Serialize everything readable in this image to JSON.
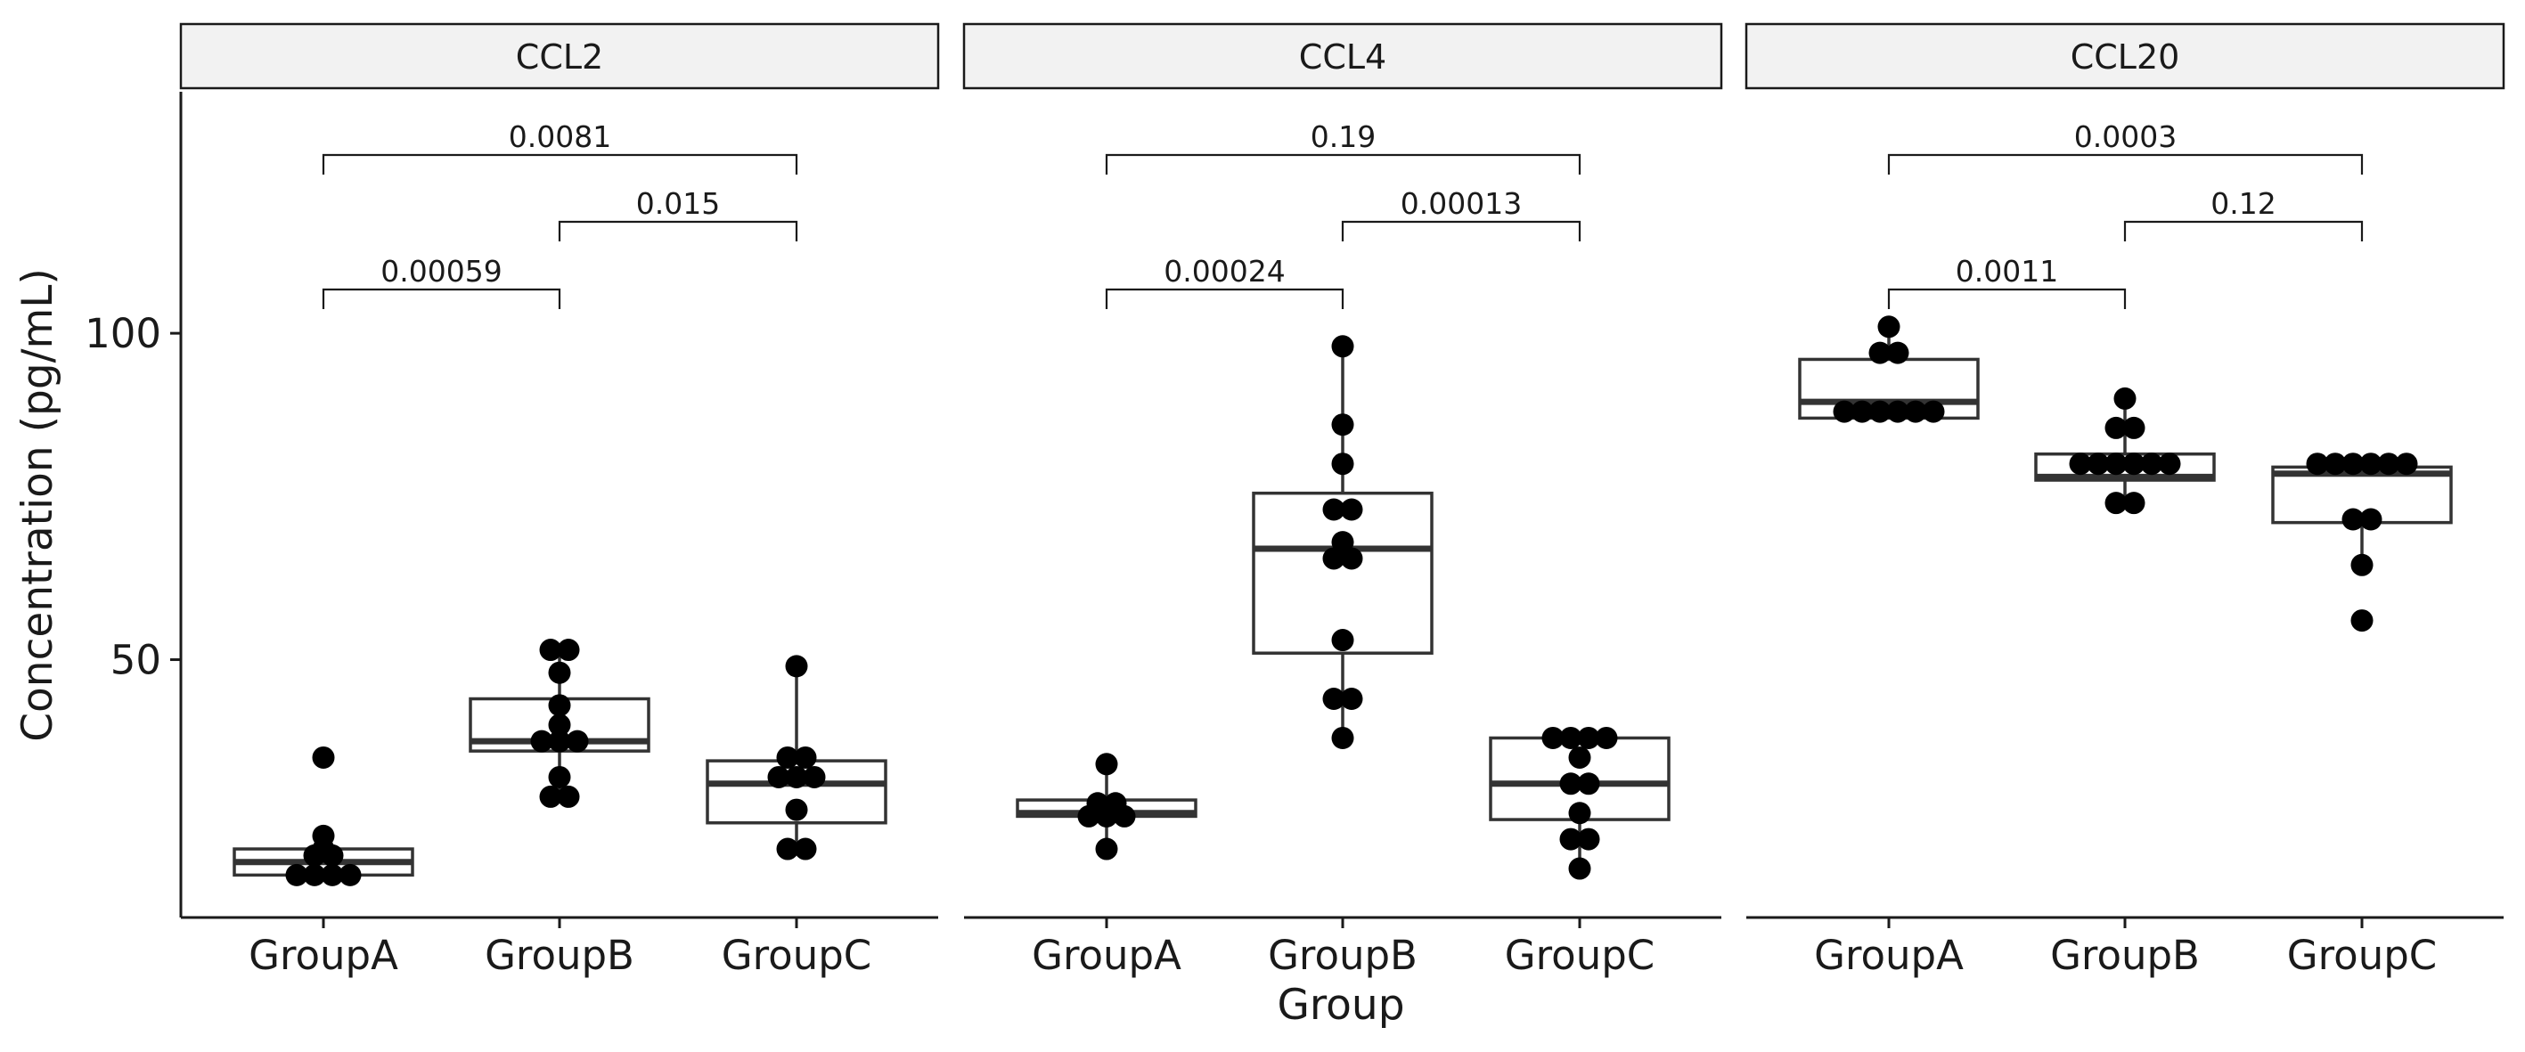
{
  "chart_data": {
    "type": "box",
    "xlabel": "Group",
    "ylabel": "Concentration (pg/mL)",
    "ylim": [
      10.5,
      137
    ],
    "yticks": [
      50,
      100
    ],
    "categories": [
      "GroupA",
      "GroupB",
      "GroupC"
    ],
    "grid": false,
    "facets": [
      {
        "title": "CCL2",
        "boxes": [
          {
            "group": "GroupA",
            "q1": 17,
            "median": 19,
            "q3": 21,
            "whisker_low": 17,
            "whisker_high": 23,
            "outliers": [
              35
            ]
          },
          {
            "group": "GroupB",
            "q1": 36,
            "median": 37.5,
            "q3": 44,
            "whisker_low": 29,
            "whisker_high": 51.5,
            "outliers": []
          },
          {
            "group": "GroupC",
            "q1": 25,
            "median": 31,
            "q3": 34.5,
            "whisker_low": 21,
            "whisker_high": 49,
            "outliers": []
          }
        ],
        "points": [
          {
            "group": "GroupA",
            "values": [
              35,
              23,
              21,
              20,
              20,
              17,
              17,
              17,
              17
            ]
          },
          {
            "group": "GroupB",
            "values": [
              51.5,
              51.5,
              48,
              43,
              40,
              37.5,
              37.5,
              37.5,
              32,
              29,
              29
            ]
          },
          {
            "group": "GroupC",
            "values": [
              49,
              35,
              35,
              32,
              32,
              32,
              27,
              21,
              21
            ]
          }
        ],
        "comparisons": [
          {
            "from": "GroupA",
            "to": "GroupB",
            "label": "0.00059"
          },
          {
            "from": "GroupB",
            "to": "GroupC",
            "label": "0.015"
          },
          {
            "from": "GroupA",
            "to": "GroupC",
            "label": "0.0081"
          }
        ]
      },
      {
        "title": "CCL4",
        "boxes": [
          {
            "group": "GroupA",
            "q1": 26,
            "median": 26.5,
            "q3": 28.5,
            "whisker_low": 21,
            "whisker_high": 34,
            "outliers": []
          },
          {
            "group": "GroupB",
            "q1": 51,
            "median": 67,
            "q3": 75.5,
            "whisker_low": 38,
            "whisker_high": 98,
            "outliers": []
          },
          {
            "group": "GroupC",
            "q1": 25.5,
            "median": 31,
            "q3": 38,
            "whisker_low": 18,
            "whisker_high": 38,
            "outliers": []
          }
        ],
        "points": [
          {
            "group": "GroupA",
            "values": [
              34,
              28,
              28,
              26,
              26,
              26,
              21
            ]
          },
          {
            "group": "GroupB",
            "values": [
              98,
              86,
              80,
              73,
              73,
              68,
              65.5,
              65.5,
              53,
              44,
              44,
              38
            ]
          },
          {
            "group": "GroupC",
            "values": [
              38,
              38,
              38,
              38,
              35,
              31,
              31,
              26.5,
              22.5,
              22.5,
              18
            ]
          }
        ],
        "comparisons": [
          {
            "from": "GroupA",
            "to": "GroupB",
            "label": "0.00024"
          },
          {
            "from": "GroupB",
            "to": "GroupC",
            "label": "0.00013"
          },
          {
            "from": "GroupA",
            "to": "GroupC",
            "label": "0.19"
          }
        ]
      },
      {
        "title": "CCL20",
        "boxes": [
          {
            "group": "GroupA",
            "q1": 87,
            "median": 89.5,
            "q3": 96,
            "whisker_low": 87,
            "whisker_high": 101,
            "outliers": []
          },
          {
            "group": "GroupB",
            "q1": 77.5,
            "median": 78,
            "q3": 81.5,
            "whisker_low": 74,
            "whisker_high": 90,
            "outliers": []
          },
          {
            "group": "GroupC",
            "q1": 71,
            "median": 78.5,
            "q3": 79.5,
            "whisker_low": 64,
            "whisker_high": 79.5,
            "outliers": [
              56
            ]
          }
        ],
        "points": [
          {
            "group": "GroupA",
            "values": [
              101,
              97,
              97,
              88,
              88,
              88,
              88,
              88,
              88
            ]
          },
          {
            "group": "GroupB",
            "values": [
              90,
              85.5,
              85.5,
              80,
              80,
              80,
              80,
              80,
              80,
              74,
              74
            ]
          },
          {
            "group": "GroupC",
            "values": [
              80,
              80,
              80,
              80,
              80,
              80,
              71.5,
              71.5,
              64.5,
              56
            ]
          }
        ],
        "comparisons": [
          {
            "from": "GroupA",
            "to": "GroupB",
            "label": "0.0011"
          },
          {
            "from": "GroupB",
            "to": "GroupC",
            "label": "0.12"
          },
          {
            "from": "GroupA",
            "to": "GroupC",
            "label": "0.0003"
          }
        ]
      }
    ]
  }
}
